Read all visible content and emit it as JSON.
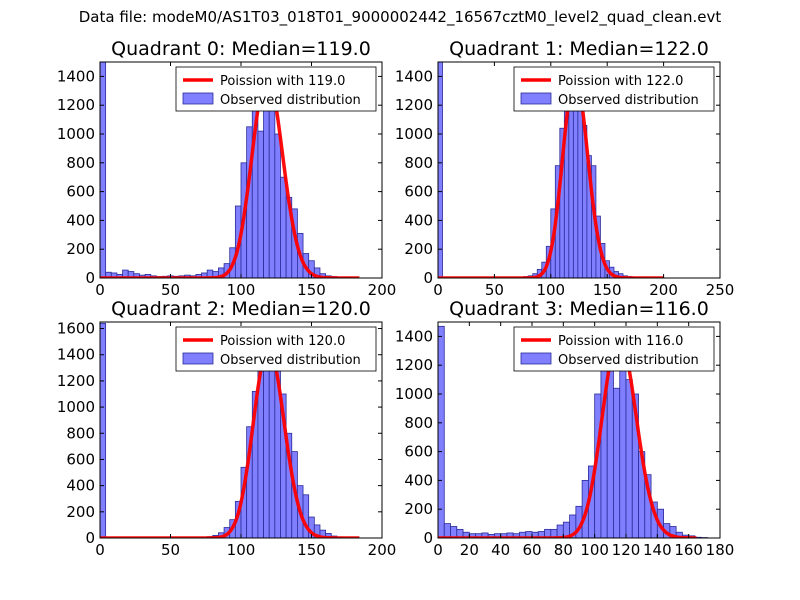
{
  "figure": {
    "suptitle": "Data file: modeM0/AS1T03_018T01_9000002442_16567cztM0_level2_quad_clean.evt"
  },
  "colors": {
    "bar_fill": "#7f7fff",
    "bar_edge": "#2b2b99",
    "line": "#ff0000"
  },
  "chart_data": [
    {
      "type": "bar",
      "title": "Quadrant 0: Median=119.0",
      "legend": [
        "Poission with 119.0",
        "Observed distribution"
      ],
      "legend_position": "top-right",
      "xlim": [
        0,
        200
      ],
      "ylim": [
        0,
        1500
      ],
      "xticks": [
        0,
        50,
        100,
        150,
        200
      ],
      "xtick_labels": [
        "0",
        "50",
        "100",
        "150",
        "200"
      ],
      "yticks": [
        0,
        200,
        400,
        600,
        800,
        1000,
        1200,
        1400
      ],
      "ytick_labels": [
        "0",
        "200",
        "400",
        "600",
        "800",
        "1000",
        "1200",
        "1400"
      ],
      "bin_width": 4,
      "bins_start": [
        0,
        4,
        8,
        12,
        16,
        20,
        24,
        28,
        32,
        36,
        40,
        44,
        48,
        52,
        56,
        60,
        64,
        68,
        72,
        76,
        80,
        84,
        88,
        92,
        96,
        100,
        104,
        108,
        112,
        116,
        120,
        124,
        128,
        132,
        136,
        140,
        144,
        148,
        152,
        156,
        160,
        164,
        168,
        172,
        176,
        180
      ],
      "counts": [
        1500,
        40,
        35,
        25,
        55,
        45,
        30,
        20,
        25,
        15,
        10,
        12,
        15,
        12,
        15,
        20,
        15,
        25,
        35,
        55,
        45,
        70,
        100,
        210,
        500,
        800,
        1050,
        1350,
        1020,
        1450,
        1200,
        1000,
        700,
        560,
        480,
        310,
        170,
        120,
        70,
        30,
        15,
        10,
        5,
        3,
        2,
        1
      ],
      "poisson_mean": 119.0,
      "poisson_peak": 1400
    },
    {
      "type": "bar",
      "title": "Quadrant 1: Median=122.0",
      "legend": [
        "Poission with 122.0",
        "Observed distribution"
      ],
      "legend_position": "top-right",
      "xlim": [
        0,
        250
      ],
      "ylim": [
        0,
        1500
      ],
      "xticks": [
        0,
        50,
        100,
        150,
        200,
        250
      ],
      "xtick_labels": [
        "0",
        "50",
        "100",
        "150",
        "200",
        "250"
      ],
      "yticks": [
        0,
        200,
        400,
        600,
        800,
        1000,
        1200,
        1400
      ],
      "ytick_labels": [
        "0",
        "200",
        "400",
        "600",
        "800",
        "1000",
        "1200",
        "1400"
      ],
      "bin_width": 4,
      "bins_start": [
        0,
        76,
        80,
        84,
        88,
        92,
        96,
        100,
        104,
        108,
        112,
        116,
        120,
        124,
        128,
        132,
        136,
        140,
        144,
        148,
        152,
        156,
        160,
        164,
        168,
        172,
        176
      ],
      "counts": [
        1500,
        10,
        15,
        30,
        60,
        110,
        220,
        480,
        780,
        1040,
        1350,
        1400,
        1450,
        1280,
        1060,
        850,
        780,
        430,
        240,
        120,
        75,
        45,
        30,
        15,
        10,
        5,
        3
      ],
      "poisson_mean": 122.0,
      "poisson_peak": 1400
    },
    {
      "type": "bar",
      "title": "Quadrant 2: Median=120.0",
      "legend": [
        "Poission with 120.0",
        "Observed distribution"
      ],
      "legend_position": "top-right",
      "xlim": [
        0,
        200
      ],
      "ylim": [
        0,
        1650
      ],
      "xticks": [
        0,
        50,
        100,
        150,
        200
      ],
      "xtick_labels": [
        "0",
        "50",
        "100",
        "150",
        "200"
      ],
      "yticks": [
        0,
        200,
        400,
        600,
        800,
        1000,
        1200,
        1400,
        1600
      ],
      "ytick_labels": [
        "0",
        "200",
        "400",
        "600",
        "800",
        "1000",
        "1200",
        "1400",
        "1600"
      ],
      "bin_width": 4,
      "bins_start": [
        0,
        76,
        80,
        84,
        88,
        92,
        96,
        100,
        104,
        108,
        112,
        116,
        120,
        124,
        128,
        132,
        136,
        140,
        144,
        148,
        152,
        156,
        160,
        164,
        168
      ],
      "counts": [
        1640,
        10,
        20,
        40,
        80,
        140,
        280,
        540,
        850,
        1120,
        1450,
        1500,
        1500,
        1350,
        1100,
        800,
        660,
        400,
        330,
        160,
        100,
        60,
        35,
        15,
        8
      ],
      "poisson_mean": 120.0,
      "poisson_peak": 1450
    },
    {
      "type": "bar",
      "title": "Quadrant 3: Median=116.0",
      "legend": [
        "Poission with 116.0",
        "Observed distribution"
      ],
      "legend_position": "top-right",
      "xlim": [
        0,
        180
      ],
      "ylim": [
        0,
        1500
      ],
      "xticks": [
        0,
        20,
        40,
        60,
        80,
        100,
        120,
        140,
        160,
        180
      ],
      "xtick_labels": [
        "0",
        "20",
        "40",
        "60",
        "80",
        "100",
        "120",
        "140",
        "160",
        "180"
      ],
      "yticks": [
        0,
        200,
        400,
        600,
        800,
        1000,
        1200,
        1400
      ],
      "ytick_labels": [
        "0",
        "200",
        "400",
        "600",
        "800",
        "1000",
        "1200",
        "1400"
      ],
      "bin_width": 4,
      "bins_start": [
        0,
        4,
        8,
        12,
        16,
        20,
        24,
        28,
        32,
        36,
        40,
        44,
        48,
        52,
        56,
        60,
        64,
        68,
        72,
        76,
        80,
        84,
        88,
        92,
        96,
        100,
        104,
        108,
        112,
        116,
        120,
        124,
        128,
        132,
        136,
        140,
        144,
        148,
        152,
        156,
        160,
        164,
        168
      ],
      "counts": [
        1470,
        100,
        80,
        60,
        40,
        30,
        30,
        35,
        25,
        30,
        30,
        35,
        30,
        40,
        45,
        40,
        45,
        60,
        60,
        90,
        110,
        160,
        220,
        400,
        500,
        1000,
        1450,
        1350,
        1040,
        1280,
        1100,
        1000,
        600,
        440,
        250,
        200,
        100,
        80,
        40,
        20,
        15,
        5,
        3
      ],
      "poisson_mean": 116.0,
      "poisson_peak": 1400
    }
  ]
}
